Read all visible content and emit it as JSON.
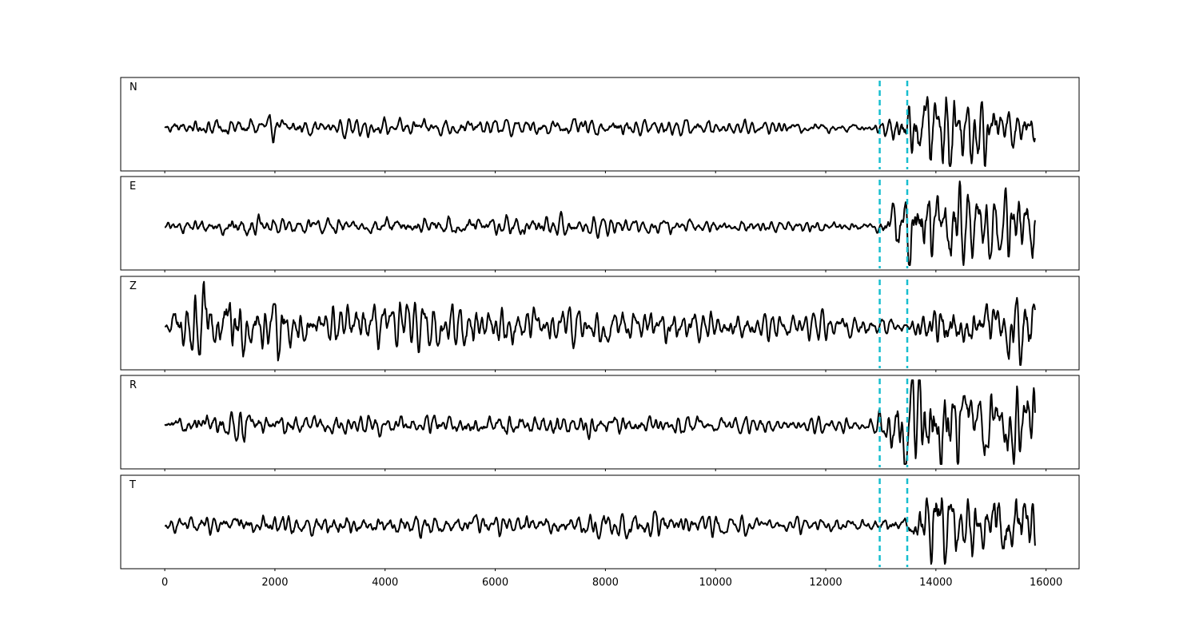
{
  "chart_data": {
    "type": "line",
    "title": "",
    "xlabel": "",
    "ylabel": "",
    "xlim": [
      -800,
      16600
    ],
    "x_ticks": [
      0,
      2000,
      4000,
      6000,
      8000,
      10000,
      12000,
      14000,
      16000
    ],
    "x_tick_labels": [
      "0",
      "2000",
      "4000",
      "6000",
      "8000",
      "10000",
      "12000",
      "14000",
      "16000"
    ],
    "x_range": [
      0,
      15800
    ],
    "grid": false,
    "colors": {
      "trace": "#000000",
      "markers": "#17becf"
    },
    "markers": {
      "style": "dashed",
      "x": [
        12980,
        13480
      ]
    },
    "panels": [
      {
        "label": "N",
        "noise_amplitude": 0.14,
        "envelope": [
          [
            0,
            0.12
          ],
          [
            1000,
            0.18
          ],
          [
            1500,
            0.22
          ],
          [
            3000,
            0.15
          ],
          [
            5000,
            0.16
          ],
          [
            7000,
            0.17
          ],
          [
            9000,
            0.16
          ],
          [
            10500,
            0.12
          ],
          [
            12900,
            0.1
          ],
          [
            13300,
            0.35
          ],
          [
            13800,
            0.8
          ],
          [
            14200,
            1.0
          ],
          [
            15000,
            0.55
          ],
          [
            15800,
            0.3
          ]
        ]
      },
      {
        "label": "E",
        "noise_amplitude": 0.13,
        "envelope": [
          [
            0,
            0.1
          ],
          [
            1100,
            0.2
          ],
          [
            3000,
            0.15
          ],
          [
            6500,
            0.22
          ],
          [
            8000,
            0.16
          ],
          [
            10000,
            0.13
          ],
          [
            12900,
            0.1
          ],
          [
            13400,
            0.6
          ],
          [
            13800,
            0.9
          ],
          [
            14400,
            0.9
          ],
          [
            15200,
            0.6
          ],
          [
            15700,
            0.85
          ],
          [
            15800,
            0.85
          ]
        ]
      },
      {
        "label": "Z",
        "noise_amplitude": 0.3,
        "envelope": [
          [
            0,
            0.08
          ],
          [
            500,
            0.9
          ],
          [
            900,
            0.75
          ],
          [
            1500,
            0.55
          ],
          [
            3000,
            0.4
          ],
          [
            5300,
            0.45
          ],
          [
            7000,
            0.35
          ],
          [
            9000,
            0.3
          ],
          [
            11000,
            0.25
          ],
          [
            13000,
            0.2
          ],
          [
            13500,
            0.2
          ],
          [
            14000,
            0.45
          ],
          [
            15000,
            0.45
          ],
          [
            15600,
            0.8
          ],
          [
            15800,
            0.6
          ]
        ]
      },
      {
        "label": "R",
        "noise_amplitude": 0.14,
        "envelope": [
          [
            0,
            0.1
          ],
          [
            1100,
            0.25
          ],
          [
            3000,
            0.15
          ],
          [
            6500,
            0.2
          ],
          [
            8000,
            0.18
          ],
          [
            10000,
            0.14
          ],
          [
            12900,
            0.12
          ],
          [
            13250,
            0.55
          ],
          [
            13600,
            1.0
          ],
          [
            14100,
            0.9
          ],
          [
            15000,
            0.65
          ],
          [
            15800,
            0.7
          ]
        ]
      },
      {
        "label": "T",
        "noise_amplitude": 0.14,
        "envelope": [
          [
            0,
            0.12
          ],
          [
            1500,
            0.22
          ],
          [
            4500,
            0.2
          ],
          [
            7000,
            0.2
          ],
          [
            9000,
            0.28
          ],
          [
            10500,
            0.14
          ],
          [
            12900,
            0.13
          ],
          [
            13500,
            0.25
          ],
          [
            14000,
            1.0
          ],
          [
            14400,
            0.6
          ],
          [
            15200,
            0.8
          ],
          [
            15800,
            0.7
          ]
        ]
      }
    ]
  }
}
